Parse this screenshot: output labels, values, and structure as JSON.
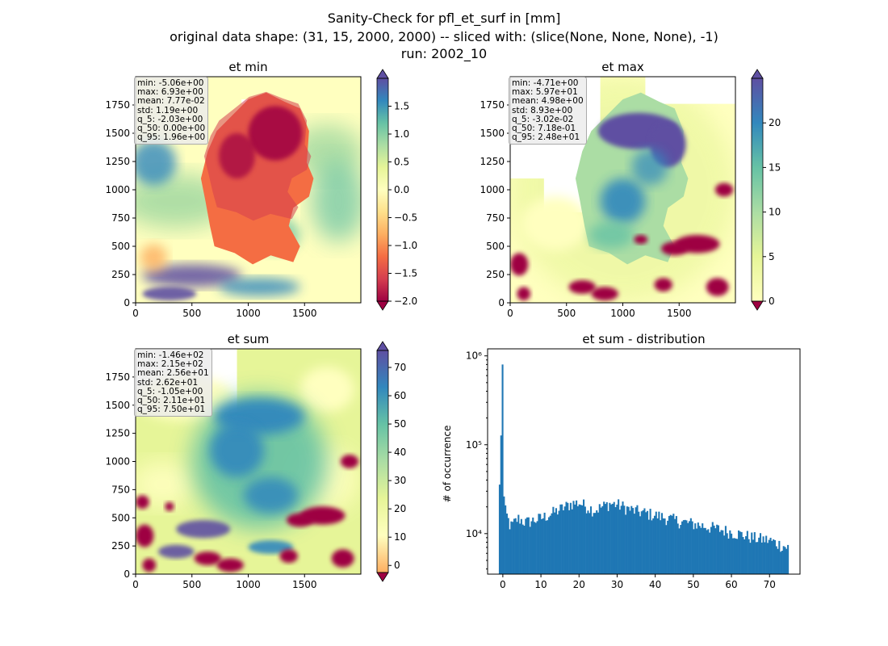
{
  "figure": {
    "title_line1": "Sanity-Check for pfl_et_surf in [mm]",
    "title_line2": "original data shape: (31, 15, 2000, 2000) -- sliced with: (slice(None, None, None), -1)",
    "title_line3": "run: 2002_10"
  },
  "colors": {
    "deep_red": "#9e0142",
    "red": "#d53e4f",
    "orange": "#f46d43",
    "light_orange": "#fdae61",
    "light_yellow": "#fee08b",
    "pale_yellow": "#ffffbf",
    "light_green": "#e6f598",
    "green": "#abdda4",
    "teal": "#66c2a5",
    "blue": "#3288bd",
    "purple": "#5e4fa2",
    "hist_bar": "#1f77b4"
  },
  "chart_data": [
    {
      "type": "heatmap",
      "title": "et min",
      "xlim": [
        0,
        2000
      ],
      "ylim": [
        0,
        2000
      ],
      "xticks": [
        0,
        500,
        1000,
        1500
      ],
      "yticks": [
        0,
        250,
        500,
        750,
        1000,
        1250,
        1500,
        1750
      ],
      "colorbar": {
        "min": -2.0,
        "max": 2.0,
        "ticks": [
          -2.0,
          -1.5,
          -1.0,
          -0.5,
          0.0,
          0.5,
          1.0,
          1.5
        ],
        "tick_labels": [
          "−2.0",
          "−1.5",
          "−1.0",
          "−0.5",
          "0.0",
          "0.5",
          "1.0",
          "1.5"
        ],
        "extend": "both",
        "colormap": "Spectral"
      },
      "stats": [
        "min: -5.06e+00",
        "max: 6.93e+00",
        "mean: 7.77e-02",
        "std: 1.19e+00",
        "q_5: -2.03e+00",
        "q_50: 0.00e+00",
        "q_95: 1.96e+00"
      ]
    },
    {
      "type": "heatmap",
      "title": "et max",
      "xlim": [
        0,
        2000
      ],
      "ylim": [
        0,
        2000
      ],
      "xticks": [
        0,
        500,
        1000,
        1500
      ],
      "yticks": [
        0,
        250,
        500,
        750,
        1000,
        1250,
        1500,
        1750
      ],
      "colorbar": {
        "min": 0,
        "max": 25,
        "ticks": [
          0,
          5,
          10,
          15,
          20
        ],
        "tick_labels": [
          "0",
          "5",
          "10",
          "15",
          "20"
        ],
        "extend": "both",
        "colormap": "Spectral"
      },
      "stats": [
        "min: -4.71e+00",
        "max: 5.97e+01",
        "mean: 4.98e+00",
        "std: 8.93e+00",
        "q_5: -3.02e-02",
        "q_50: 7.18e-01",
        "q_95: 2.48e+01"
      ]
    },
    {
      "type": "heatmap",
      "title": "et sum",
      "xlim": [
        0,
        2000
      ],
      "ylim": [
        0,
        2000
      ],
      "xticks": [
        0,
        500,
        1000,
        1500
      ],
      "yticks": [
        0,
        250,
        500,
        750,
        1000,
        1250,
        1500,
        1750
      ],
      "colorbar": {
        "min": -2.5,
        "max": 76,
        "ticks": [
          0,
          10,
          20,
          30,
          40,
          50,
          60,
          70
        ],
        "tick_labels": [
          "0",
          "10",
          "20",
          "30",
          "40",
          "50",
          "60",
          "70"
        ],
        "extend": "both",
        "colormap": "Spectral"
      },
      "stats": [
        "min: -1.46e+02",
        "max: 2.15e+02",
        "mean: 2.56e+01",
        "std: 2.62e+01",
        "q_5: -1.05e+00",
        "q_50: 2.11e+01",
        "q_95: 7.50e+01"
      ]
    },
    {
      "type": "bar",
      "title": "et sum - distribution",
      "ylabel": "# of occurrence",
      "xlim": [
        -4,
        78
      ],
      "xticks": [
        0,
        10,
        20,
        30,
        40,
        50,
        60,
        70
      ],
      "yscale": "log",
      "ylim": [
        3500,
        1200000
      ],
      "yticks": [
        10000,
        100000,
        1000000
      ],
      "ytick_labels": [
        "10⁴",
        "10⁵",
        "10⁶"
      ],
      "bin_range": [
        -1.05,
        75.0
      ],
      "anchors": [
        [
          -1.05,
          17000
        ],
        [
          0.0,
          800000
        ],
        [
          0.3,
          20000
        ],
        [
          2,
          12000
        ],
        [
          4,
          15000
        ],
        [
          6,
          13500
        ],
        [
          10,
          15000
        ],
        [
          14,
          18000
        ],
        [
          18,
          22000
        ],
        [
          20,
          22500
        ],
        [
          24,
          18500
        ],
        [
          28,
          22000
        ],
        [
          30,
          21500
        ],
        [
          34,
          18500
        ],
        [
          38,
          17000
        ],
        [
          42,
          15500
        ],
        [
          46,
          14000
        ],
        [
          50,
          13000
        ],
        [
          54,
          12000
        ],
        [
          58,
          11000
        ],
        [
          62,
          10000
        ],
        [
          66,
          9000
        ],
        [
          70,
          8500
        ],
        [
          73,
          7500
        ],
        [
          75,
          7000
        ]
      ]
    }
  ]
}
